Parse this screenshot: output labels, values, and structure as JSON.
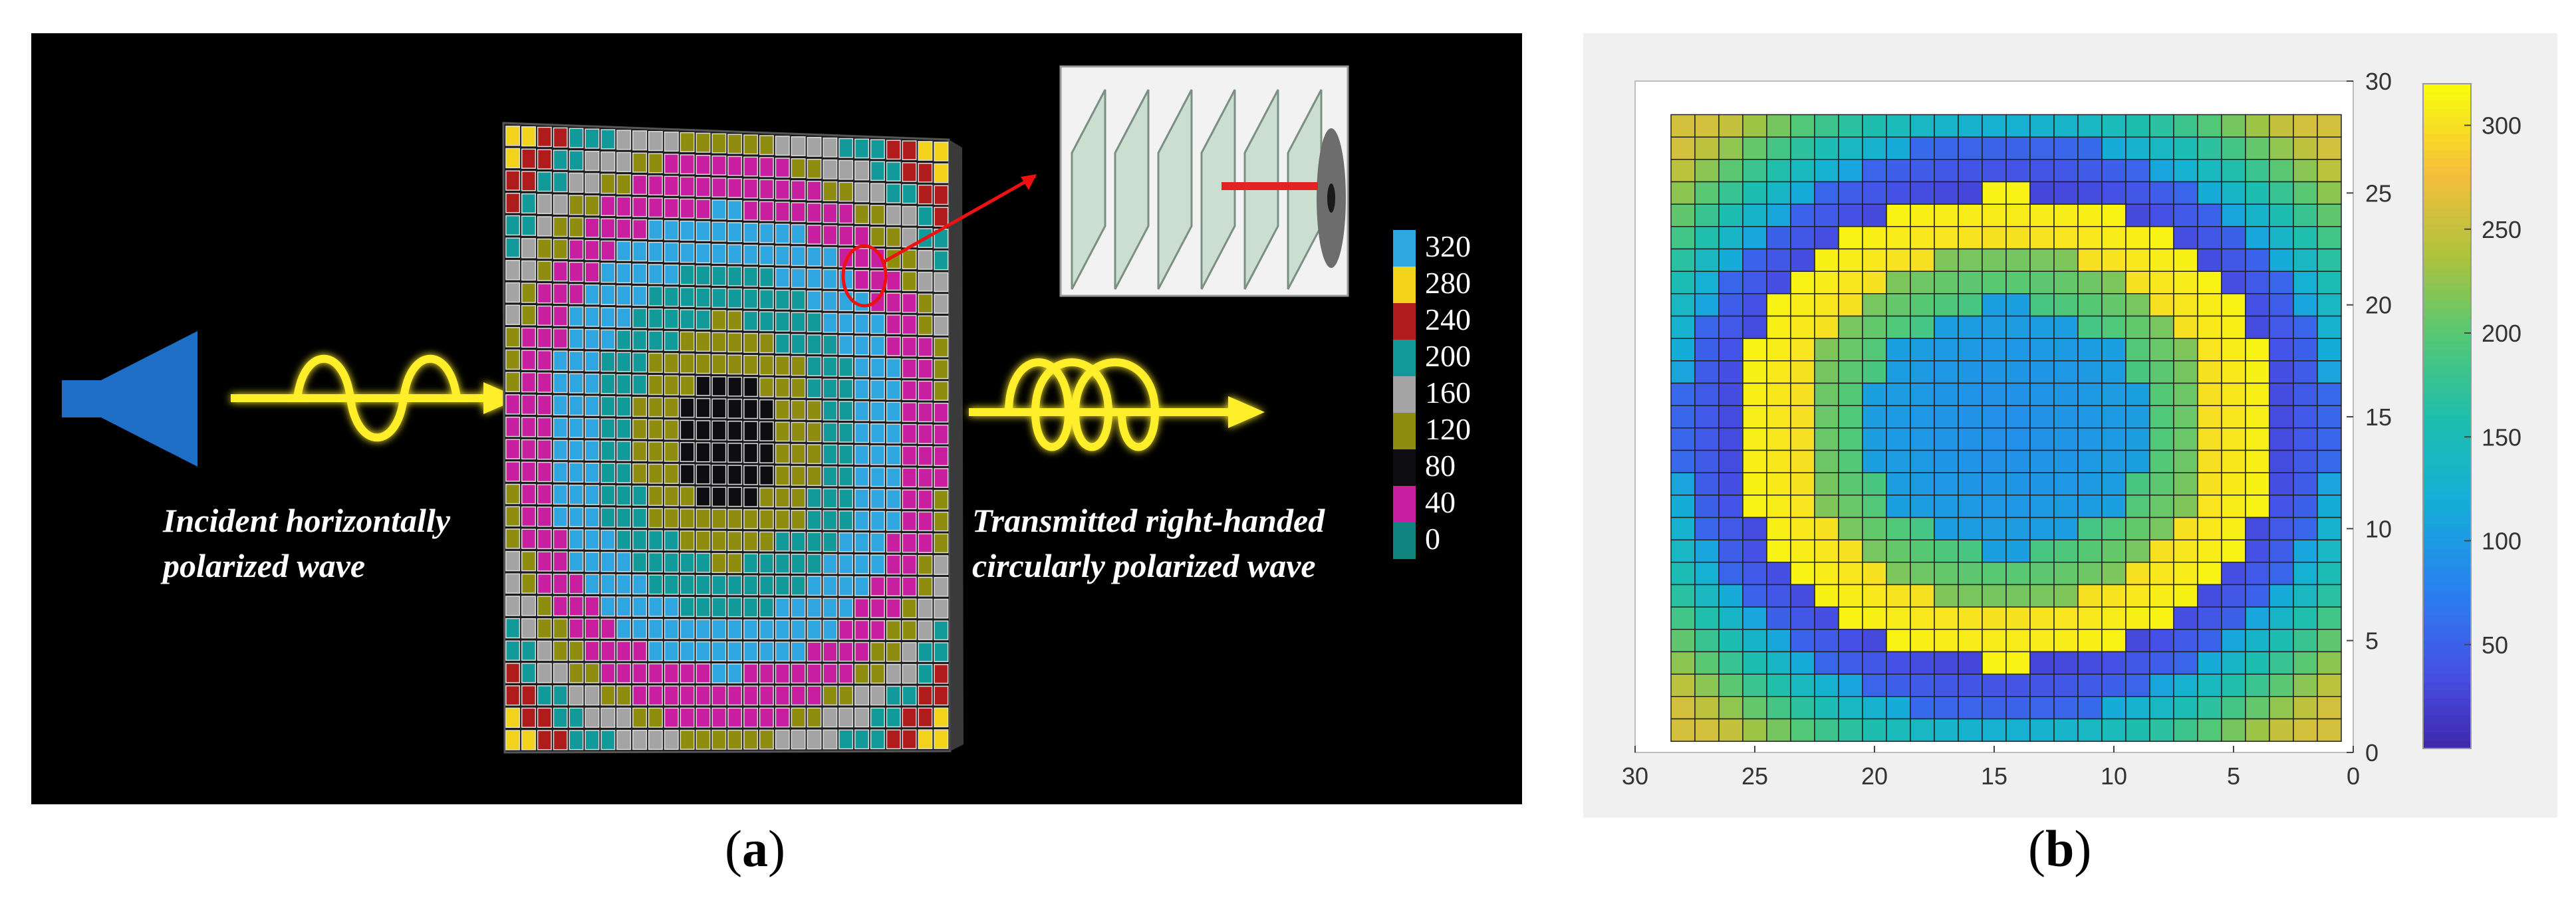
{
  "panel_a": {
    "incident_line1": "Incident horizontally",
    "incident_line2": "polarized wave",
    "transmitted_line1": "Transmitted right-handed",
    "transmitted_line2": "circularly polarized wave",
    "colorbar_labels": [
      "320",
      "280",
      "240",
      "200",
      "160",
      "120",
      "80",
      "40",
      "0"
    ],
    "colorbar_colors": [
      "#2fa6e0",
      "#f2d21a",
      "#b01c1c",
      "#12999a",
      "#a4a4a4",
      "#8f8d10",
      "#0d0d12",
      "#c81ea0",
      "#10857f"
    ]
  },
  "panel_b": {
    "chart_data": {
      "type": "heatmap",
      "x_ticks": [
        "30",
        "25",
        "20",
        "15",
        "10",
        "5",
        "0"
      ],
      "y_ticks": [
        "0",
        "5",
        "10",
        "15",
        "20",
        "25",
        "30"
      ],
      "xlim": [
        30,
        0
      ],
      "ylim": [
        0,
        30
      ],
      "colorbar_ticks": [
        "50",
        "100",
        "150",
        "200",
        "250",
        "300"
      ],
      "colorbar_range": [
        0,
        320
      ],
      "grid_size": [
        28,
        28
      ],
      "colormap": "parula"
    }
  },
  "captions": {
    "a_open": "(",
    "a_letter": "a",
    "a_close": ")",
    "b_open": "(",
    "b_letter": "b",
    "b_close": ")"
  }
}
